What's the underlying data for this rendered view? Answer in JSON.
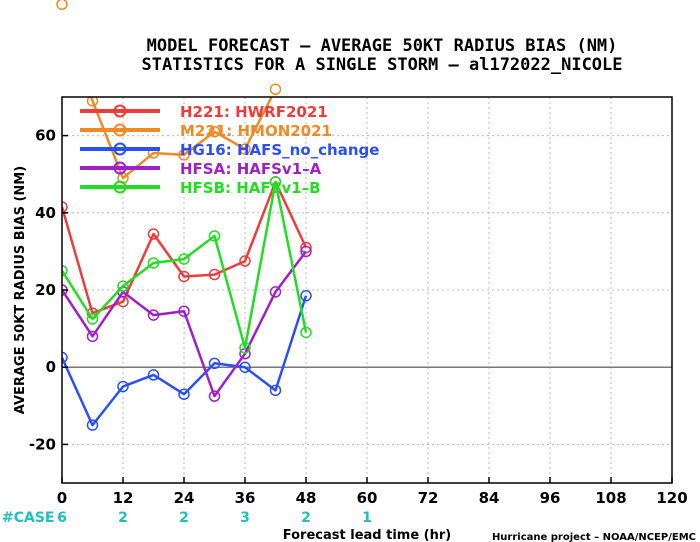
{
  "chart_data": {
    "type": "line",
    "title": "MODEL FORECAST – AVERAGE 50KT RADIUS BIAS (NM)",
    "subtitle": "STATISTICS FOR A SINGLE STORM – al172022_NICOLE",
    "xlabel": "Forecast lead time (hr)",
    "ylabel": "AVERAGE 50KT RADIUS BIAS (NM)",
    "xlim": [
      0,
      120
    ],
    "ylim": [
      -30,
      70
    ],
    "xticks": [
      "0",
      "12",
      "24",
      "36",
      "48",
      "60",
      "72",
      "84",
      "96",
      "108",
      "120"
    ],
    "yticks": [
      "-20",
      "0",
      "20",
      "40",
      "60"
    ],
    "grid": true,
    "zero_line": true,
    "legend_position": "top-left",
    "x": [
      0,
      6,
      12,
      18,
      24,
      30,
      36,
      42,
      48
    ],
    "series": [
      {
        "name": "H221: HWRF2021",
        "color": "#ee3b3b",
        "values": [
          41.5,
          14,
          17,
          34.5,
          23.5,
          24,
          27.5,
          48,
          31
        ]
      },
      {
        "name": "M221: HMON2021",
        "color": "#f08a24",
        "values": [
          94,
          69,
          49,
          55.5,
          55,
          61,
          56.5,
          72,
          null
        ]
      },
      {
        "name": "HG16: HAFS_no_change",
        "color": "#2a4ff5",
        "values": [
          2.5,
          -15,
          -5,
          -2,
          -7,
          1,
          0,
          -6,
          18.5
        ]
      },
      {
        "name": "HFSA: HAFSv1–A",
        "color": "#a020c8",
        "values": [
          20,
          8,
          19.5,
          13.5,
          14.5,
          -7.5,
          3.5,
          19.5,
          30
        ]
      },
      {
        "name": "HFSB: HAFSv1–B",
        "color": "#22dd22",
        "values": [
          25,
          12.5,
          21,
          27,
          28,
          34,
          5,
          48,
          9
        ]
      }
    ],
    "case_label": "#CASE",
    "case_counts": [
      {
        "x": 0,
        "label": "6"
      },
      {
        "x": 12,
        "label": "2"
      },
      {
        "x": 24,
        "label": "2"
      },
      {
        "x": 36,
        "label": "3"
      },
      {
        "x": 48,
        "label": "2"
      },
      {
        "x": 60,
        "label": "1"
      }
    ],
    "credit": "Hurricane project – NOAA/NCEP/EMC"
  }
}
